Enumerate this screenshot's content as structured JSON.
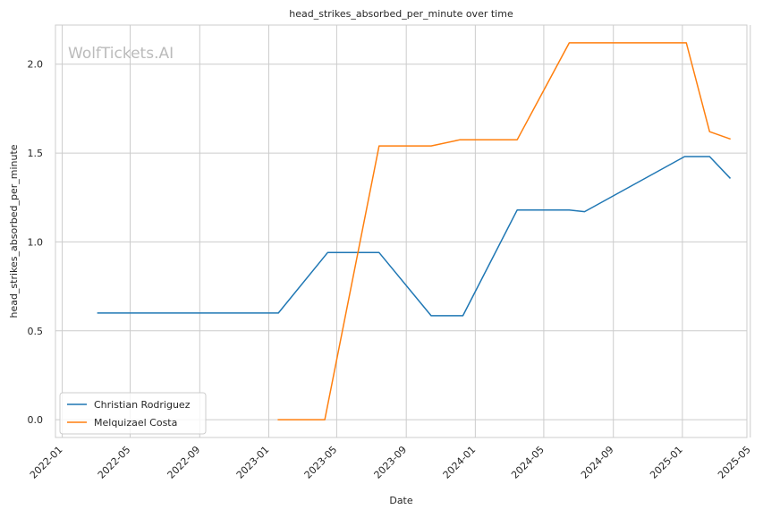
{
  "chart_data": {
    "type": "line",
    "title": "head_strikes_absorbed_per_minute over time",
    "xlabel": "Date",
    "ylabel": "head_strikes_absorbed_per_minute",
    "watermark": "WolfTickets.AI",
    "grid": true,
    "legend_position": "lower-left",
    "xlim": [
      "2021-12-20",
      "2025-04-25"
    ],
    "ylim": [
      -0.1,
      2.22
    ],
    "x_ticks": [
      "2022-01",
      "2022-05",
      "2022-09",
      "2023-01",
      "2023-05",
      "2023-09",
      "2024-01",
      "2024-05",
      "2024-09",
      "2025-01",
      "2025-05"
    ],
    "y_ticks": [
      "0.0",
      "0.5",
      "1.0",
      "1.5",
      "2.0"
    ],
    "series": [
      {
        "name": "Christian Rodriguez",
        "color": "#1f77b4",
        "points": [
          {
            "x": "2022-03-05",
            "y": 0.6
          },
          {
            "x": "2023-01-18",
            "y": 0.6
          },
          {
            "x": "2023-04-15",
            "y": 0.94
          },
          {
            "x": "2023-07-15",
            "y": 0.94
          },
          {
            "x": "2023-10-15",
            "y": 0.585
          },
          {
            "x": "2023-12-10",
            "y": 0.585
          },
          {
            "x": "2024-03-15",
            "y": 1.18
          },
          {
            "x": "2024-06-15",
            "y": 1.18
          },
          {
            "x": "2024-07-12",
            "y": 1.17
          },
          {
            "x": "2025-01-05",
            "y": 1.48
          },
          {
            "x": "2025-02-18",
            "y": 1.48
          },
          {
            "x": "2025-03-26",
            "y": 1.36
          }
        ]
      },
      {
        "name": "Melquizael Costa",
        "color": "#ff7f0e",
        "points": [
          {
            "x": "2023-01-18",
            "y": 0.0
          },
          {
            "x": "2023-04-10",
            "y": 0.0
          },
          {
            "x": "2023-07-15",
            "y": 1.54
          },
          {
            "x": "2023-10-15",
            "y": 1.54
          },
          {
            "x": "2023-12-05",
            "y": 1.575
          },
          {
            "x": "2024-03-15",
            "y": 1.575
          },
          {
            "x": "2024-06-15",
            "y": 2.12
          },
          {
            "x": "2025-01-08",
            "y": 2.12
          },
          {
            "x": "2025-02-18",
            "y": 1.62
          },
          {
            "x": "2025-03-26",
            "y": 1.58
          }
        ]
      }
    ]
  }
}
